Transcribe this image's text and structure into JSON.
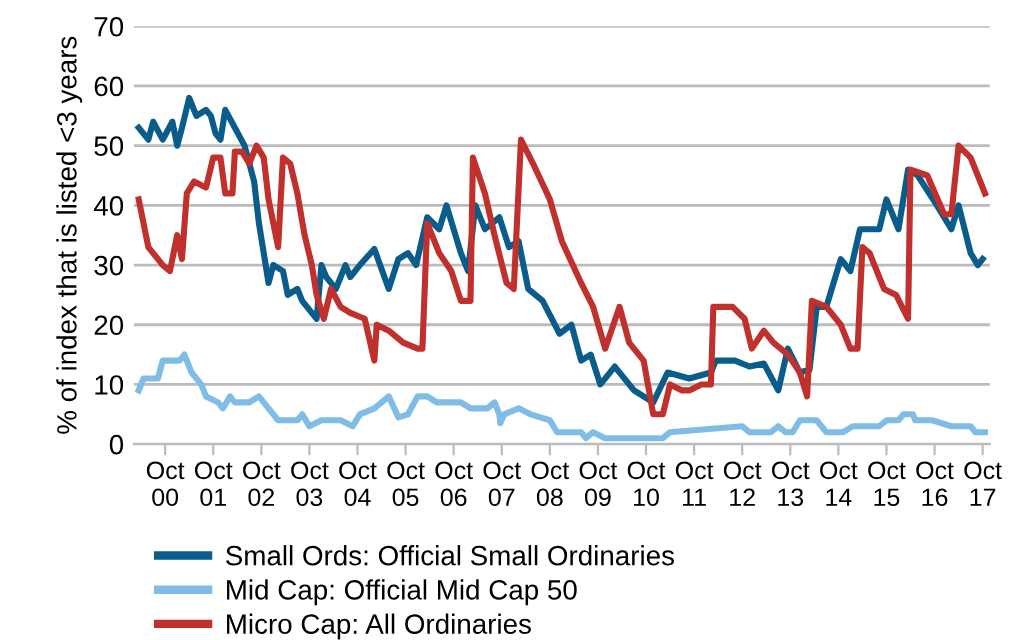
{
  "chart_data": {
    "type": "line",
    "ylabel": "% of index that is listed <3 years",
    "xlim": [
      "2000-02-07",
      "2017-11-25"
    ],
    "ylim": [
      0,
      70
    ],
    "yticks": [
      0,
      10,
      20,
      30,
      40,
      50,
      60,
      70
    ],
    "xticks": [
      {
        "value": "2000-10-01",
        "label": "Oct\n00"
      },
      {
        "value": "2001-10-01",
        "label": "Oct\n01"
      },
      {
        "value": "2002-10-01",
        "label": "Oct\n02"
      },
      {
        "value": "2003-10-01",
        "label": "Oct\n03"
      },
      {
        "value": "2004-10-01",
        "label": "Oct\n04"
      },
      {
        "value": "2005-10-01",
        "label": "Oct\n05"
      },
      {
        "value": "2006-10-01",
        "label": "Oct\n06"
      },
      {
        "value": "2007-10-01",
        "label": "Oct\n07"
      },
      {
        "value": "2008-10-01",
        "label": "Oct\n08"
      },
      {
        "value": "2009-10-01",
        "label": "Oct\n09"
      },
      {
        "value": "2010-10-01",
        "label": "Oct\n10"
      },
      {
        "value": "2011-10-01",
        "label": "Oct\n11"
      },
      {
        "value": "2012-10-01",
        "label": "Oct\n12"
      },
      {
        "value": "2013-10-01",
        "label": "Oct\n13"
      },
      {
        "value": "2014-10-01",
        "label": "Oct\n14"
      },
      {
        "value": "2015-10-01",
        "label": "Oct\n15"
      },
      {
        "value": "2016-10-01",
        "label": "Oct\n16"
      },
      {
        "value": "2017-10-01",
        "label": "Oct\n17"
      }
    ],
    "grid": "y",
    "legend": "bottom",
    "marker": "none",
    "line_style": "solid",
    "series": [
      {
        "name": "Small Ords: Official Small Ordinaries",
        "color": "#0a5c8a",
        "x": [
          "2000-03-13",
          "2000-05-25",
          "2000-07-01",
          "2000-09-13",
          "2000-11-25",
          "2001-01-01",
          "2001-02-07",
          "2001-04-01",
          "2001-05-25",
          "2001-08-07",
          "2001-09-13",
          "2001-10-19",
          "2001-11-25",
          "2002-01-01",
          "2002-03-13",
          "2002-05-25",
          "2002-08-07",
          "2002-09-13",
          "2002-10-19",
          "2002-11-25",
          "2003-01-01",
          "2003-03-13",
          "2003-04-19",
          "2003-07-01",
          "2003-08-07",
          "2003-10-19",
          "2003-11-25",
          "2004-01-01",
          "2004-02-07",
          "2004-04-19",
          "2004-07-01",
          "2004-08-07",
          "2004-10-19",
          "2005-02-07",
          "2005-05-25",
          "2005-08-07",
          "2005-10-19",
          "2005-12-20",
          "2006-03-13",
          "2006-06-13",
          "2006-08-07",
          "2006-11-25",
          "2007-01-19",
          "2007-03-13",
          "2007-05-25",
          "2007-09-13",
          "2007-11-25",
          "2008-02-07",
          "2008-04-19",
          "2008-08-07",
          "2008-12-13",
          "2009-03-13",
          "2009-05-25",
          "2009-08-07",
          "2009-10-19",
          "2010-02-07",
          "2010-07-01",
          "2010-11-25",
          "2011-03-13",
          "2011-08-25",
          "2012-02-07",
          "2012-03-13",
          "2012-08-07",
          "2012-11-25",
          "2013-03-13",
          "2013-07-01",
          "2013-09-13",
          "2013-12-13",
          "2014-02-25",
          "2014-04-19",
          "2014-07-01",
          "2014-10-19",
          "2015-01-01",
          "2015-03-13",
          "2015-08-07",
          "2015-10-01",
          "2016-01-01",
          "2016-03-13",
          "2016-05-25",
          "2016-10-19",
          "2017-02-07",
          "2017-04-01",
          "2017-07-01",
          "2017-08-25",
          "2017-10-01"
        ],
        "values": [
          53,
          51,
          54,
          51,
          54,
          50,
          53,
          58,
          55,
          56,
          55,
          52,
          51,
          56,
          53,
          50,
          44,
          37,
          32,
          27,
          30,
          29,
          25,
          26,
          24,
          22,
          21,
          30,
          28,
          26,
          30,
          28,
          30,
          32.7,
          26,
          31,
          32,
          30,
          38,
          36,
          40,
          32,
          29,
          40,
          36,
          38,
          33,
          34,
          26,
          24,
          18.5,
          20,
          14,
          15,
          10,
          13,
          9,
          7,
          12,
          11,
          12,
          14,
          14,
          13,
          13.5,
          9,
          16,
          12,
          12.5,
          23,
          23,
          31,
          29,
          36,
          36,
          41,
          36,
          46,
          45,
          40,
          36,
          40,
          32,
          30,
          31
        ]
      },
      {
        "name": "Mid Cap: Official Mid Cap 50",
        "color": "#7fbde6",
        "x": [
          "2000-03-13",
          "2000-04-19",
          "2000-08-07",
          "2000-09-13",
          "2001-01-19",
          "2001-02-25",
          "2001-04-19",
          "2001-07-01",
          "2001-08-07",
          "2001-11-07",
          "2001-12-13",
          "2002-02-07",
          "2002-03-13",
          "2002-07-01",
          "2002-09-13",
          "2002-11-25",
          "2003-02-07",
          "2003-07-01",
          "2003-08-07",
          "2003-10-01",
          "2004-01-01",
          "2004-05-25",
          "2004-08-25",
          "2004-10-19",
          "2005-02-07",
          "2005-05-25",
          "2005-08-07",
          "2005-10-19",
          "2006-01-01",
          "2006-03-13",
          "2006-05-25",
          "2006-11-25",
          "2007-02-07",
          "2007-06-13",
          "2007-08-07",
          "2007-09-13",
          "2007-09-20",
          "2007-10-19",
          "2008-02-07",
          "2008-05-07",
          "2008-10-01",
          "2008-11-25",
          "2009-05-25",
          "2009-07-01",
          "2009-08-25",
          "2009-11-25",
          "2011-02-07",
          "2011-04-01",
          "2012-10-01",
          "2012-11-25",
          "2013-05-07",
          "2013-07-01",
          "2013-08-25",
          "2013-10-19",
          "2013-12-13",
          "2014-04-19",
          "2014-07-01",
          "2014-11-07",
          "2015-01-19",
          "2015-08-07",
          "2015-10-01",
          "2016-01-01",
          "2016-02-07",
          "2016-04-19",
          "2016-05-07",
          "2016-09-13",
          "2017-02-07",
          "2017-07-01",
          "2017-08-07",
          "2017-10-19"
        ],
        "values": [
          9,
          11,
          11,
          14,
          14,
          15,
          12,
          10,
          8,
          7,
          6,
          8,
          7,
          7,
          8,
          6,
          4,
          4,
          5,
          3,
          4,
          4,
          3,
          5,
          6,
          8,
          4.5,
          5,
          8,
          8,
          7,
          7,
          6,
          6,
          7,
          5,
          3.5,
          5,
          6,
          5,
          4,
          2,
          2,
          1,
          2,
          1,
          1,
          2,
          3,
          2,
          2,
          3,
          2,
          2,
          4,
          4,
          2,
          2,
          3,
          3,
          4,
          4,
          5,
          5,
          4,
          4,
          3,
          3,
          2,
          2
        ]
      },
      {
        "name": "Micro Cap: All Ordinaries",
        "color": "#c0302c",
        "x": [
          "2000-03-13",
          "2000-05-25",
          "2000-09-13",
          "2000-11-07",
          "2001-01-01",
          "2001-02-07",
          "2001-03-13",
          "2001-05-07",
          "2001-08-07",
          "2001-10-01",
          "2001-11-25",
          "2002-01-01",
          "2002-02-25",
          "2002-03-13",
          "2002-05-07",
          "2002-07-01",
          "2002-08-25",
          "2002-10-19",
          "2002-11-25",
          "2003-02-07",
          "2003-03-13",
          "2003-05-07",
          "2003-07-01",
          "2003-08-25",
          "2003-10-19",
          "2003-11-25",
          "2004-01-19",
          "2004-03-13",
          "2004-05-25",
          "2004-08-07",
          "2004-11-25",
          "2005-02-07",
          "2005-02-25",
          "2005-05-25",
          "2005-09-13",
          "2006-01-01",
          "2006-02-07",
          "2006-03-13",
          "2006-06-13",
          "2006-09-13",
          "2006-11-25",
          "2007-02-07",
          "2007-02-25",
          "2007-05-25",
          "2007-08-07",
          "2007-11-07",
          "2008-01-01",
          "2008-02-25",
          "2008-05-25",
          "2008-10-01",
          "2009-01-01",
          "2009-05-25",
          "2009-08-25",
          "2009-11-25",
          "2010-03-13",
          "2010-05-25",
          "2010-09-13",
          "2010-11-25",
          "2011-02-07",
          "2011-04-01",
          "2011-07-01",
          "2011-08-25",
          "2011-11-25",
          "2012-02-07",
          "2012-02-25",
          "2012-07-19",
          "2012-10-19",
          "2012-12-13",
          "2013-03-13",
          "2013-05-25",
          "2013-09-13",
          "2013-12-13",
          "2014-02-07",
          "2014-03-13",
          "2014-07-01",
          "2014-10-19",
          "2015-01-01",
          "2015-02-25",
          "2015-04-01",
          "2015-05-25",
          "2015-09-13",
          "2015-12-13",
          "2016-03-13",
          "2016-04-01",
          "2016-08-07",
          "2016-12-13",
          "2017-02-07",
          "2017-04-01",
          "2017-07-01",
          "2017-08-25",
          "2017-10-19"
        ],
        "values": [
          41,
          33,
          30,
          29,
          35,
          31,
          42,
          44,
          43,
          48,
          48,
          42,
          42,
          49,
          49,
          47,
          50,
          48,
          41,
          33,
          48,
          47,
          42,
          35,
          30,
          25,
          21,
          26,
          23,
          22,
          21,
          14,
          20,
          19,
          17,
          16,
          16,
          37,
          32,
          29,
          24,
          24,
          48,
          42,
          35,
          27,
          26,
          51,
          47,
          41,
          34,
          27,
          23,
          16,
          23,
          17,
          14,
          5,
          5,
          10,
          9,
          9,
          10,
          10,
          23,
          23,
          21,
          16,
          19,
          17,
          15,
          12,
          8,
          24,
          23,
          20,
          16,
          16,
          33,
          32,
          26,
          25,
          21,
          46,
          45,
          38.5,
          38.5,
          50,
          48,
          45,
          42
        ]
      }
    ]
  }
}
